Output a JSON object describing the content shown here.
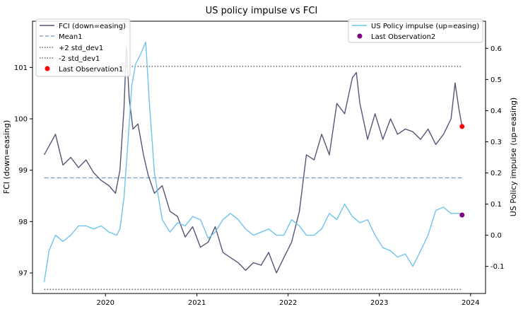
{
  "chart_data": {
    "type": "line",
    "title": "US policy impulse vs FCI",
    "x_ticks": [
      "2020",
      "2021",
      "2022",
      "2023",
      "2024"
    ],
    "x_range": [
      "2019-03-15",
      "2024-03-01"
    ],
    "left_axis": {
      "label": "FCI (down=easing)",
      "ylim": [
        96.6,
        101.9
      ],
      "ticks": [
        97,
        98,
        99,
        100,
        101
      ]
    },
    "right_axis": {
      "label": "US Policy impulse (up=easing)",
      "ylim": [
        -0.187,
        0.687
      ],
      "ticks": [
        -0.1,
        0.0,
        0.1,
        0.2,
        0.3,
        0.4,
        0.5,
        0.6
      ]
    },
    "legend_left": {
      "placement": "upper-left",
      "entries": [
        "FCI (down=easing)",
        "Mean1",
        "+2 std_dev1",
        "-2 std_dev1",
        "Last Observation1"
      ]
    },
    "legend_right": {
      "placement": "upper-right",
      "entries": [
        "US Policy impulse (up=easing)",
        "Last Observation2"
      ]
    },
    "series": [
      {
        "name": "FCI (down=easing)",
        "axis": "left",
        "color": "#555577",
        "x": [
          "2019-05-01",
          "2019-06-15",
          "2019-07-15",
          "2019-08-15",
          "2019-09-15",
          "2019-10-15",
          "2019-11-15",
          "2019-12-15",
          "2020-01-15",
          "2020-02-10",
          "2020-02-28",
          "2020-03-15",
          "2020-03-25",
          "2020-04-05",
          "2020-04-20",
          "2020-05-10",
          "2020-06-01",
          "2020-06-20",
          "2020-07-15",
          "2020-08-15",
          "2020-09-15",
          "2020-10-15",
          "2020-11-15",
          "2020-12-15",
          "2021-01-15",
          "2021-02-15",
          "2021-03-15",
          "2021-04-15",
          "2021-05-15",
          "2021-06-15",
          "2021-07-15",
          "2021-08-15",
          "2021-09-15",
          "2021-10-15",
          "2021-11-15",
          "2021-12-15",
          "2022-01-15",
          "2022-02-15",
          "2022-03-15",
          "2022-04-15",
          "2022-05-15",
          "2022-06-15",
          "2022-07-15",
          "2022-08-15",
          "2022-09-15",
          "2022-10-01",
          "2022-10-15",
          "2022-11-15",
          "2022-12-15",
          "2023-01-15",
          "2023-02-15",
          "2023-03-15",
          "2023-04-15",
          "2023-05-15",
          "2023-06-15",
          "2023-07-15",
          "2023-08-15",
          "2023-09-15",
          "2023-10-15",
          "2023-10-31",
          "2023-11-15",
          "2023-11-28"
        ],
        "y": [
          99.3,
          99.7,
          99.1,
          99.25,
          99.05,
          99.2,
          98.95,
          98.8,
          98.7,
          98.55,
          99.0,
          100.2,
          101.4,
          100.4,
          99.8,
          99.9,
          99.3,
          98.9,
          98.55,
          98.7,
          98.2,
          98.1,
          97.7,
          97.9,
          97.5,
          97.6,
          97.9,
          97.4,
          97.3,
          97.2,
          97.05,
          97.2,
          97.15,
          97.4,
          97.0,
          97.3,
          97.6,
          98.2,
          99.3,
          99.2,
          99.7,
          99.3,
          100.3,
          100.1,
          100.8,
          100.9,
          100.3,
          99.6,
          100.1,
          99.6,
          100.0,
          99.7,
          99.8,
          99.75,
          99.6,
          99.8,
          99.5,
          99.7,
          100.0,
          100.7,
          100.2,
          99.85
        ]
      },
      {
        "name": "US Policy impulse (up=easing)",
        "axis": "right",
        "color": "#6fc3ec",
        "x": [
          "2019-05-01",
          "2019-05-20",
          "2019-06-15",
          "2019-07-15",
          "2019-08-15",
          "2019-09-15",
          "2019-10-15",
          "2019-11-15",
          "2019-12-15",
          "2020-01-15",
          "2020-02-15",
          "2020-02-28",
          "2020-03-15",
          "2020-03-31",
          "2020-04-15",
          "2020-05-01",
          "2020-05-20",
          "2020-06-10",
          "2020-06-25",
          "2020-07-15",
          "2020-08-15",
          "2020-09-15",
          "2020-10-15",
          "2020-11-15",
          "2020-12-15",
          "2021-01-15",
          "2021-02-15",
          "2021-03-15",
          "2021-04-15",
          "2021-05-15",
          "2021-06-15",
          "2021-07-15",
          "2021-08-15",
          "2021-09-15",
          "2021-10-15",
          "2021-11-15",
          "2021-12-15",
          "2022-01-15",
          "2022-02-15",
          "2022-03-15",
          "2022-04-15",
          "2022-05-15",
          "2022-06-15",
          "2022-07-15",
          "2022-08-15",
          "2022-09-15",
          "2022-10-15",
          "2022-11-15",
          "2022-12-15",
          "2023-01-15",
          "2023-02-15",
          "2023-03-15",
          "2023-04-15",
          "2023-05-15",
          "2023-06-15",
          "2023-07-15",
          "2023-08-15",
          "2023-09-15",
          "2023-10-15",
          "2023-11-15",
          "2023-11-28"
        ],
        "y": [
          -0.15,
          -0.05,
          0.0,
          -0.02,
          0.0,
          0.03,
          0.03,
          0.02,
          0.03,
          0.01,
          0.0,
          0.02,
          0.12,
          0.3,
          0.48,
          0.55,
          0.58,
          0.62,
          0.42,
          0.2,
          0.05,
          0.01,
          0.04,
          0.03,
          0.06,
          0.05,
          -0.01,
          0.01,
          0.05,
          0.07,
          0.05,
          0.02,
          0.0,
          0.01,
          0.02,
          0.0,
          0.0,
          0.05,
          0.03,
          0.0,
          0.0,
          0.02,
          0.07,
          0.05,
          0.1,
          0.06,
          0.04,
          0.05,
          0.0,
          -0.04,
          -0.05,
          -0.07,
          -0.06,
          -0.1,
          -0.05,
          0.0,
          0.08,
          0.09,
          0.07,
          0.07,
          0.065
        ]
      }
    ],
    "reference_lines": [
      {
        "name": "Mean1",
        "axis": "left",
        "value": 98.85,
        "color": "#8aa7c4",
        "style": "dashed"
      },
      {
        "name": "+2 std_dev1",
        "axis": "left",
        "value": 101.02,
        "color": "#666666",
        "style": "dotted"
      },
      {
        "name": "-2 std_dev1",
        "axis": "left",
        "value": 96.68,
        "color": "#666666",
        "style": "dotted"
      }
    ],
    "markers": [
      {
        "name": "Last Observation1",
        "axis": "left",
        "x": "2023-11-28",
        "y": 99.85,
        "color": "#ff0000"
      },
      {
        "name": "Last Observation2",
        "axis": "right",
        "x": "2023-11-28",
        "y": 0.065,
        "color": "#800080"
      }
    ],
    "grid": false
  }
}
